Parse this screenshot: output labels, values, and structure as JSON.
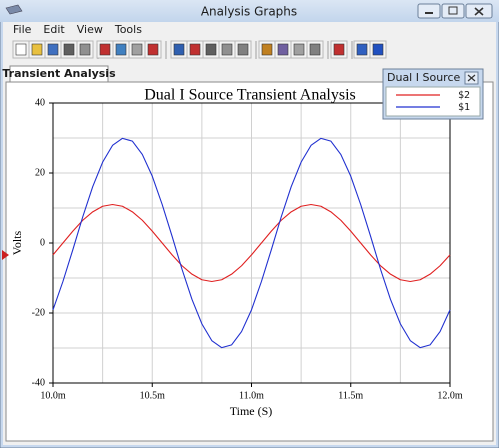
{
  "window_title": "Analysis Graphs",
  "menu": [
    "File",
    "Edit",
    "View",
    "Tools"
  ],
  "tab": "Transient Analysis",
  "chart_data": {
    "type": "line",
    "title": "Dual I Source Transient Analysis",
    "xlabel": "Time (S)",
    "ylabel": "Volts",
    "legend_title": "Dual I Source ...",
    "grid": true,
    "xlim": [
      0.01,
      0.012
    ],
    "ylim": [
      -40,
      40
    ],
    "xticks": [
      {
        "value": 0.01,
        "label": "10.0m"
      },
      {
        "value": 0.0105,
        "label": "10.5m"
      },
      {
        "value": 0.011,
        "label": "11.0m"
      },
      {
        "value": 0.0115,
        "label": "11.5m"
      },
      {
        "value": 0.012,
        "label": "12.0m"
      }
    ],
    "xminorticks": [
      0.01025,
      0.01075,
      0.01125,
      0.01175
    ],
    "yticks": [
      40,
      20,
      0,
      -20,
      -40
    ],
    "yminorticks": [
      30,
      10,
      -10,
      -30
    ],
    "x": [
      0.01,
      0.01005,
      0.0101,
      0.01015,
      0.0102,
      0.01025,
      0.0103,
      0.01035,
      0.0104,
      0.01045,
      0.0105,
      0.01055,
      0.0106,
      0.01065,
      0.0107,
      0.01075,
      0.0108,
      0.01085,
      0.0109,
      0.01095,
      0.011,
      0.01105,
      0.0111,
      0.01115,
      0.0112,
      0.01125,
      0.0113,
      0.01135,
      0.0114,
      0.01145,
      0.0115,
      0.01155,
      0.0116,
      0.01165,
      0.0117,
      0.01175,
      0.0118,
      0.01185,
      0.0119,
      0.01195,
      0.012
    ],
    "series": [
      {
        "name": "$2",
        "color": "#e02020",
        "values": [
          -3.4,
          0,
          3.4,
          6.5,
          8.9,
          10.5,
          11,
          10.5,
          8.9,
          6.5,
          3.4,
          0,
          -3.4,
          -6.5,
          -8.9,
          -10.5,
          -11,
          -10.5,
          -8.9,
          -6.5,
          -3.4,
          0,
          3.4,
          6.5,
          8.9,
          10.5,
          11,
          10.5,
          8.9,
          6.5,
          3.4,
          0,
          -3.4,
          -6.5,
          -8.9,
          -10.5,
          -11,
          -10.5,
          -8.9,
          -6.5,
          -3.4
        ]
      },
      {
        "name": "$1",
        "color": "#2030d0",
        "values": [
          -19.1,
          -11.0,
          -1.9,
          7.5,
          16.1,
          23.1,
          27.9,
          29.9,
          29.1,
          25.3,
          19.1,
          11.0,
          1.9,
          -7.5,
          -16.1,
          -23.1,
          -27.9,
          -29.9,
          -29.1,
          -25.3,
          -19.1,
          -11.0,
          -1.9,
          7.5,
          16.1,
          23.1,
          27.9,
          29.9,
          29.1,
          25.3,
          19.1,
          11.0,
          1.9,
          -7.5,
          -16.1,
          -23.1,
          -27.9,
          -29.9,
          -29.1,
          -25.3,
          -19.1
        ]
      }
    ]
  }
}
